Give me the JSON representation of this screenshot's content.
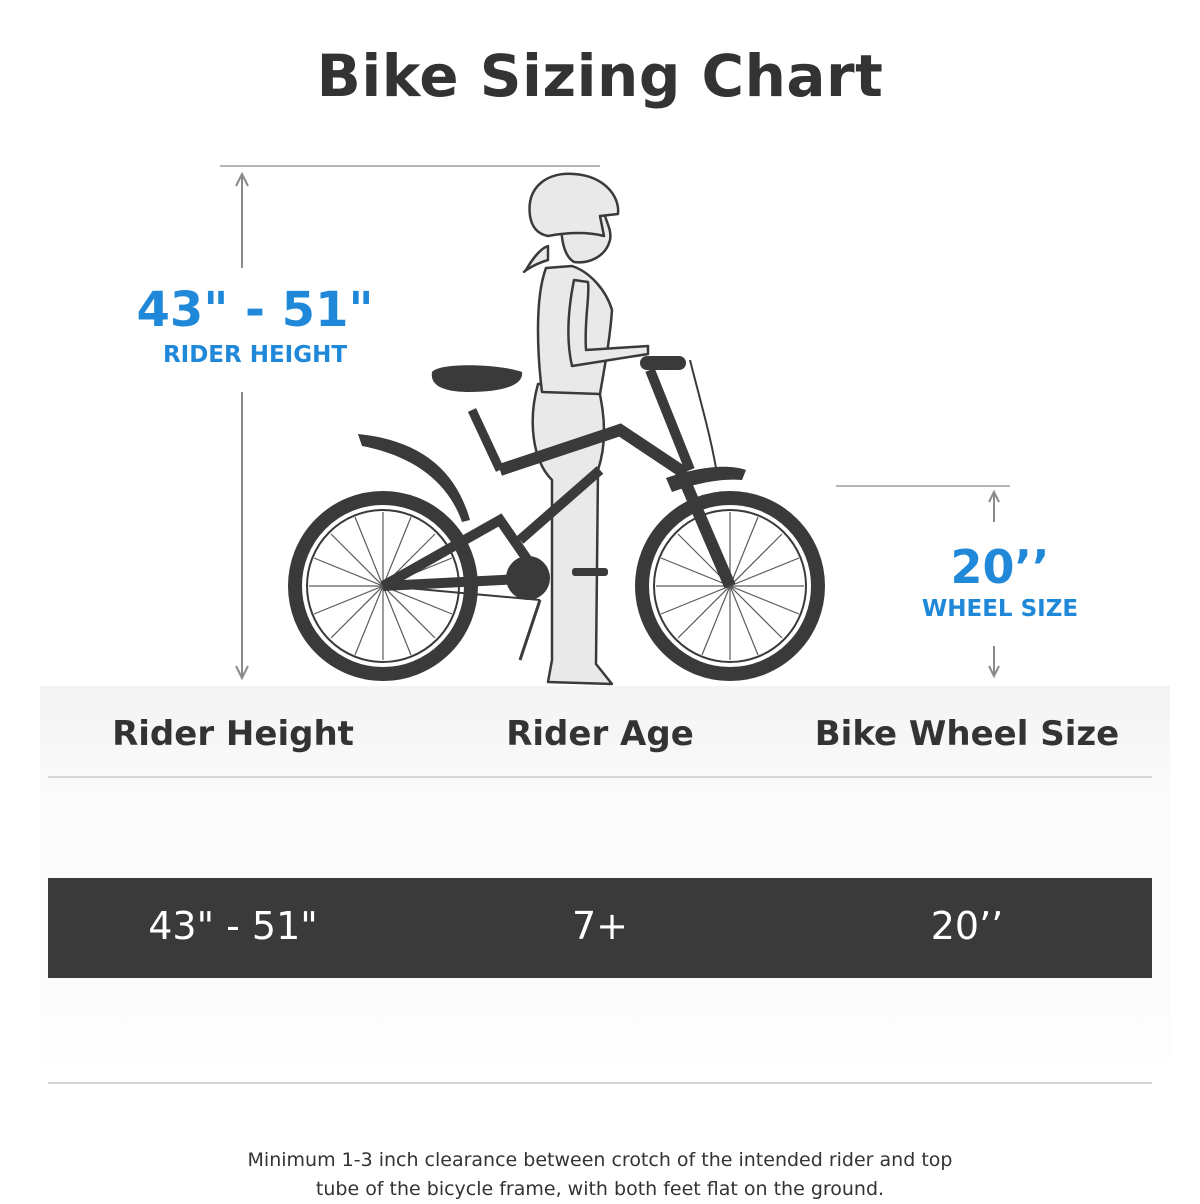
{
  "title": "Bike Sizing Chart",
  "illustration": {
    "rider_height_value": "43\" - 51\"",
    "rider_height_label": "RIDER HEIGHT",
    "wheel_size_value": "20’’",
    "wheel_size_label": "WHEEL SIZE",
    "accent_color": "#1f88d8",
    "bike_color": "#3a3a3a",
    "rider_color": "#e9e9e9"
  },
  "table": {
    "headers": [
      "Rider Height",
      "Rider Age",
      "Bike Wheel Size"
    ],
    "row": [
      "43\" - 51\"",
      "7+",
      "20’’"
    ],
    "row_bg_color": "#3a3a3a"
  },
  "note_lines": [
    "Minimum 1-3 inch clearance between crotch of the intended rider and top",
    "tube of the bicycle frame, with both feet flat on the ground."
  ]
}
